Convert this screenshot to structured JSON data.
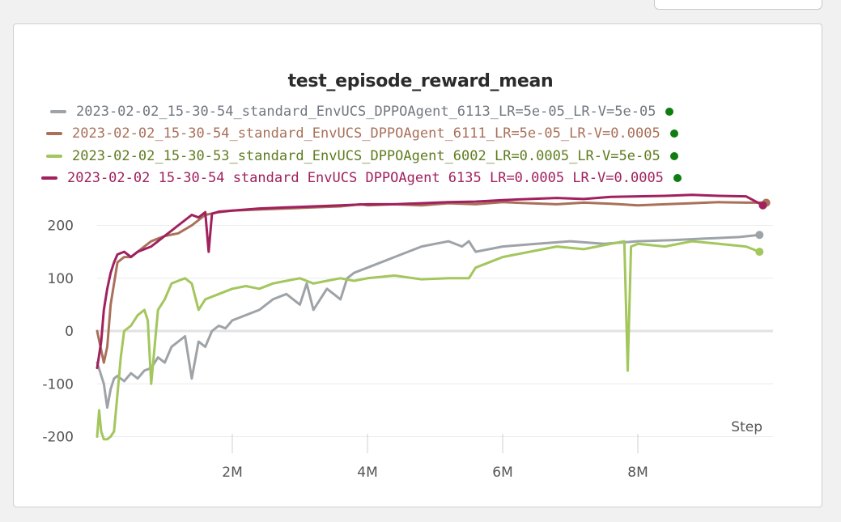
{
  "chart_data": {
    "type": "line",
    "title": "test_episode_reward_mean",
    "xlabel": "Step",
    "ylabel": "",
    "xlim": [
      0,
      10000000
    ],
    "ylim": [
      -210,
      260
    ],
    "x_ticks": [
      2000000,
      4000000,
      6000000,
      8000000
    ],
    "x_tick_labels": [
      "2M",
      "4M",
      "6M",
      "8M"
    ],
    "y_ticks": [
      -200,
      -100,
      0,
      100,
      200
    ],
    "y_tick_labels": [
      "-200",
      "-100",
      "0",
      "100",
      "200"
    ],
    "grid": true,
    "legend_position": "top",
    "legend_dot_color": "#0f7d0f",
    "series": [
      {
        "name": "2023-02-02_15-30-54_standard_EnvUCS_DPPOAgent_6113_LR=5e-05_LR-V=5e-05",
        "color": "#9ea3a8",
        "x": [
          0,
          100000,
          150000,
          200000,
          250000,
          300000,
          400000,
          500000,
          600000,
          700000,
          800000,
          900000,
          1000000,
          1100000,
          1200000,
          1300000,
          1400000,
          1500000,
          1600000,
          1700000,
          1800000,
          1900000,
          2000000,
          2200000,
          2400000,
          2600000,
          2800000,
          3000000,
          3100000,
          3200000,
          3400000,
          3500000,
          3600000,
          3700000,
          3800000,
          4000000,
          4200000,
          4400000,
          4600000,
          4800000,
          5000000,
          5200000,
          5400000,
          5500000,
          5600000,
          5800000,
          6000000,
          6500000,
          7000000,
          7500000,
          8000000,
          8500000,
          9000000,
          9500000,
          9800000
        ],
        "y": [
          -60,
          -100,
          -145,
          -110,
          -90,
          -85,
          -95,
          -80,
          -90,
          -75,
          -70,
          -50,
          -60,
          -30,
          -20,
          -10,
          -90,
          -20,
          -30,
          0,
          10,
          5,
          20,
          30,
          40,
          60,
          70,
          50,
          90,
          40,
          80,
          70,
          60,
          100,
          110,
          120,
          130,
          140,
          150,
          160,
          165,
          170,
          160,
          170,
          150,
          155,
          160,
          165,
          170,
          165,
          170,
          172,
          175,
          178,
          182
        ]
      },
      {
        "name": "2023-02-02_15-30-54_standard_EnvUCS_DPPOAgent_6111_LR=5e-05_LR-V=0.0005",
        "color": "#a9705a",
        "x": [
          0,
          100000,
          150000,
          200000,
          250000,
          300000,
          400000,
          500000,
          600000,
          700000,
          800000,
          900000,
          1000000,
          1200000,
          1400000,
          1600000,
          1800000,
          2000000,
          2400000,
          2800000,
          3200000,
          3600000,
          3900000,
          4000000,
          4400000,
          4800000,
          5200000,
          5600000,
          6000000,
          6400000,
          6800000,
          7200000,
          7600000,
          8000000,
          8400000,
          8800000,
          9200000,
          9600000,
          9900000
        ],
        "y": [
          0,
          -60,
          -30,
          50,
          90,
          130,
          140,
          140,
          150,
          160,
          170,
          175,
          180,
          185,
          200,
          220,
          225,
          228,
          230,
          232,
          234,
          236,
          240,
          238,
          240,
          238,
          242,
          240,
          244,
          242,
          240,
          243,
          241,
          238,
          240,
          242,
          244,
          243,
          243
        ]
      },
      {
        "name": "2023-02-02_15-30-53_standard_EnvUCS_DPPOAgent_6002_LR=0.0005_LR-V=5e-05",
        "color": "#a3c65d",
        "x": [
          0,
          30000,
          60000,
          100000,
          150000,
          200000,
          250000,
          300000,
          350000,
          400000,
          500000,
          600000,
          700000,
          750000,
          800000,
          900000,
          1000000,
          1100000,
          1200000,
          1300000,
          1400000,
          1500000,
          1600000,
          1800000,
          2000000,
          2200000,
          2400000,
          2600000,
          2800000,
          3000000,
          3200000,
          3400000,
          3600000,
          3800000,
          4000000,
          4400000,
          4800000,
          5200000,
          5500000,
          5600000,
          5800000,
          6000000,
          6400000,
          6800000,
          7200000,
          7600000,
          7800000,
          7850000,
          7900000,
          8000000,
          8400000,
          8800000,
          9200000,
          9600000,
          9800000
        ],
        "y": [
          -200,
          -150,
          -190,
          -205,
          -205,
          -200,
          -190,
          -120,
          -50,
          0,
          10,
          30,
          40,
          20,
          -100,
          40,
          60,
          90,
          95,
          100,
          90,
          40,
          60,
          70,
          80,
          85,
          80,
          90,
          95,
          100,
          90,
          95,
          100,
          95,
          100,
          105,
          98,
          100,
          100,
          120,
          130,
          140,
          150,
          160,
          155,
          165,
          170,
          -75,
          160,
          165,
          160,
          170,
          165,
          160,
          150
        ]
      },
      {
        "name": "2023-02-02 15-30-54 standard EnvUCS DPPOAgent 6135 LR=0.0005 LR-V=0.0005",
        "color": "#a0215e",
        "x": [
          0,
          60000,
          100000,
          150000,
          200000,
          250000,
          300000,
          400000,
          500000,
          600000,
          700000,
          800000,
          900000,
          1000000,
          1100000,
          1200000,
          1300000,
          1400000,
          1500000,
          1600000,
          1650000,
          1700000,
          1800000,
          2000000,
          2400000,
          2800000,
          3200000,
          3600000,
          4000000,
          4400000,
          4800000,
          5200000,
          5600000,
          6000000,
          6400000,
          6800000,
          7200000,
          7600000,
          8000000,
          8400000,
          8800000,
          9200000,
          9600000,
          9850000
        ],
        "y": [
          -70,
          -20,
          40,
          80,
          110,
          130,
          145,
          150,
          140,
          150,
          155,
          160,
          170,
          180,
          190,
          200,
          210,
          220,
          215,
          225,
          150,
          222,
          226,
          228,
          232,
          234,
          236,
          238,
          240,
          240,
          242,
          244,
          245,
          248,
          250,
          252,
          250,
          254,
          255,
          256,
          258,
          256,
          255,
          238
        ]
      }
    ]
  }
}
